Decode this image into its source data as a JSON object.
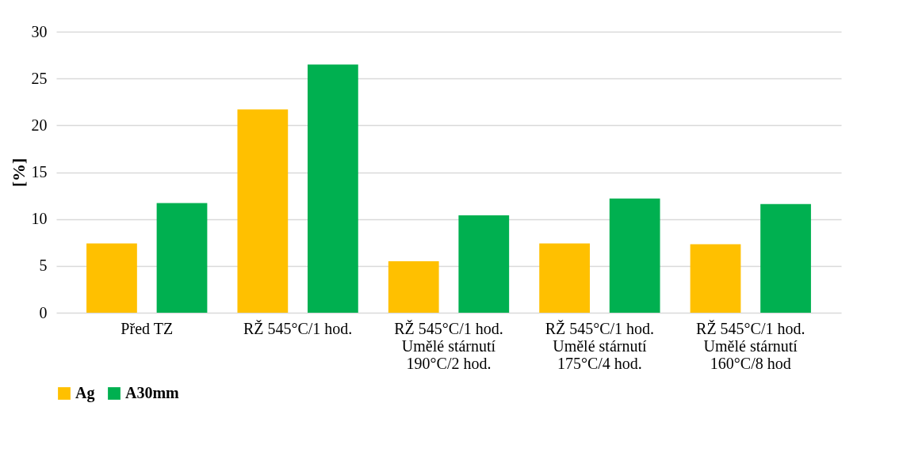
{
  "chart_data": {
    "type": "bar",
    "ylabel": "[%]",
    "categories": [
      "Před TZ",
      "RŽ 545°C/1 hod.",
      "RŽ 545°C/1 hod.\nUmělé stárnutí\n190°C/2 hod.",
      "RŽ 545°C/1 hod.\nUmělé stárnutí\n175°C/4 hod.",
      "RŽ 545°C/1 hod.\nUmělé stárnutí\n160°C/8 hod"
    ],
    "series": [
      {
        "name": "Ag",
        "color": "#ffc000",
        "values": [
          7.4,
          21.7,
          5.5,
          7.4,
          7.3
        ]
      },
      {
        "name": "A30mm",
        "color": "#00b050",
        "values": [
          11.7,
          26.5,
          10.4,
          12.2,
          11.6
        ]
      }
    ],
    "ylim": [
      0,
      30
    ],
    "yticks": [
      0,
      5,
      10,
      15,
      20,
      25,
      30
    ],
    "grid": "y",
    "legend": "bottom"
  }
}
